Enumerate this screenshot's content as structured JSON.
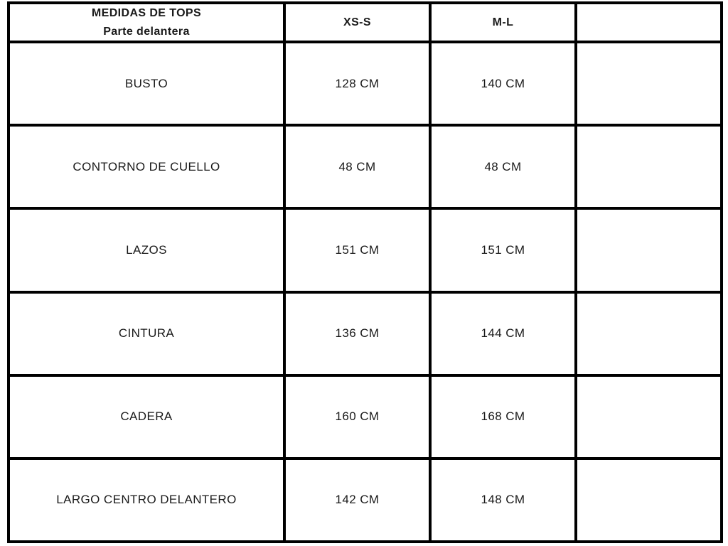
{
  "table": {
    "header": {
      "title_line1": "MEDIDAS DE TOPS",
      "title_line2": "Parte delantera",
      "col_xs_s": "XS-S",
      "col_m_l": "M-L",
      "col_extra": ""
    },
    "rows": [
      {
        "label": "BUSTO",
        "values": [
          "128 CM",
          "140 CM",
          ""
        ]
      },
      {
        "label": "CONTORNO DE CUELLO",
        "values": [
          "48 CM",
          "48 CM",
          ""
        ]
      },
      {
        "label": "LAZOS",
        "values": [
          "151 CM",
          "151 CM",
          ""
        ]
      },
      {
        "label": "CINTURA",
        "values": [
          "136 CM",
          "144 CM",
          ""
        ]
      },
      {
        "label": "CADERA",
        "values": [
          "160 CM",
          "168 CM",
          ""
        ]
      },
      {
        "label": "LARGO CENTRO DELANTERO",
        "values": [
          "142 CM",
          "148 CM",
          ""
        ]
      }
    ]
  },
  "colors": {
    "border": "#000000",
    "text": "#1a1a1a",
    "background": "#ffffff"
  }
}
